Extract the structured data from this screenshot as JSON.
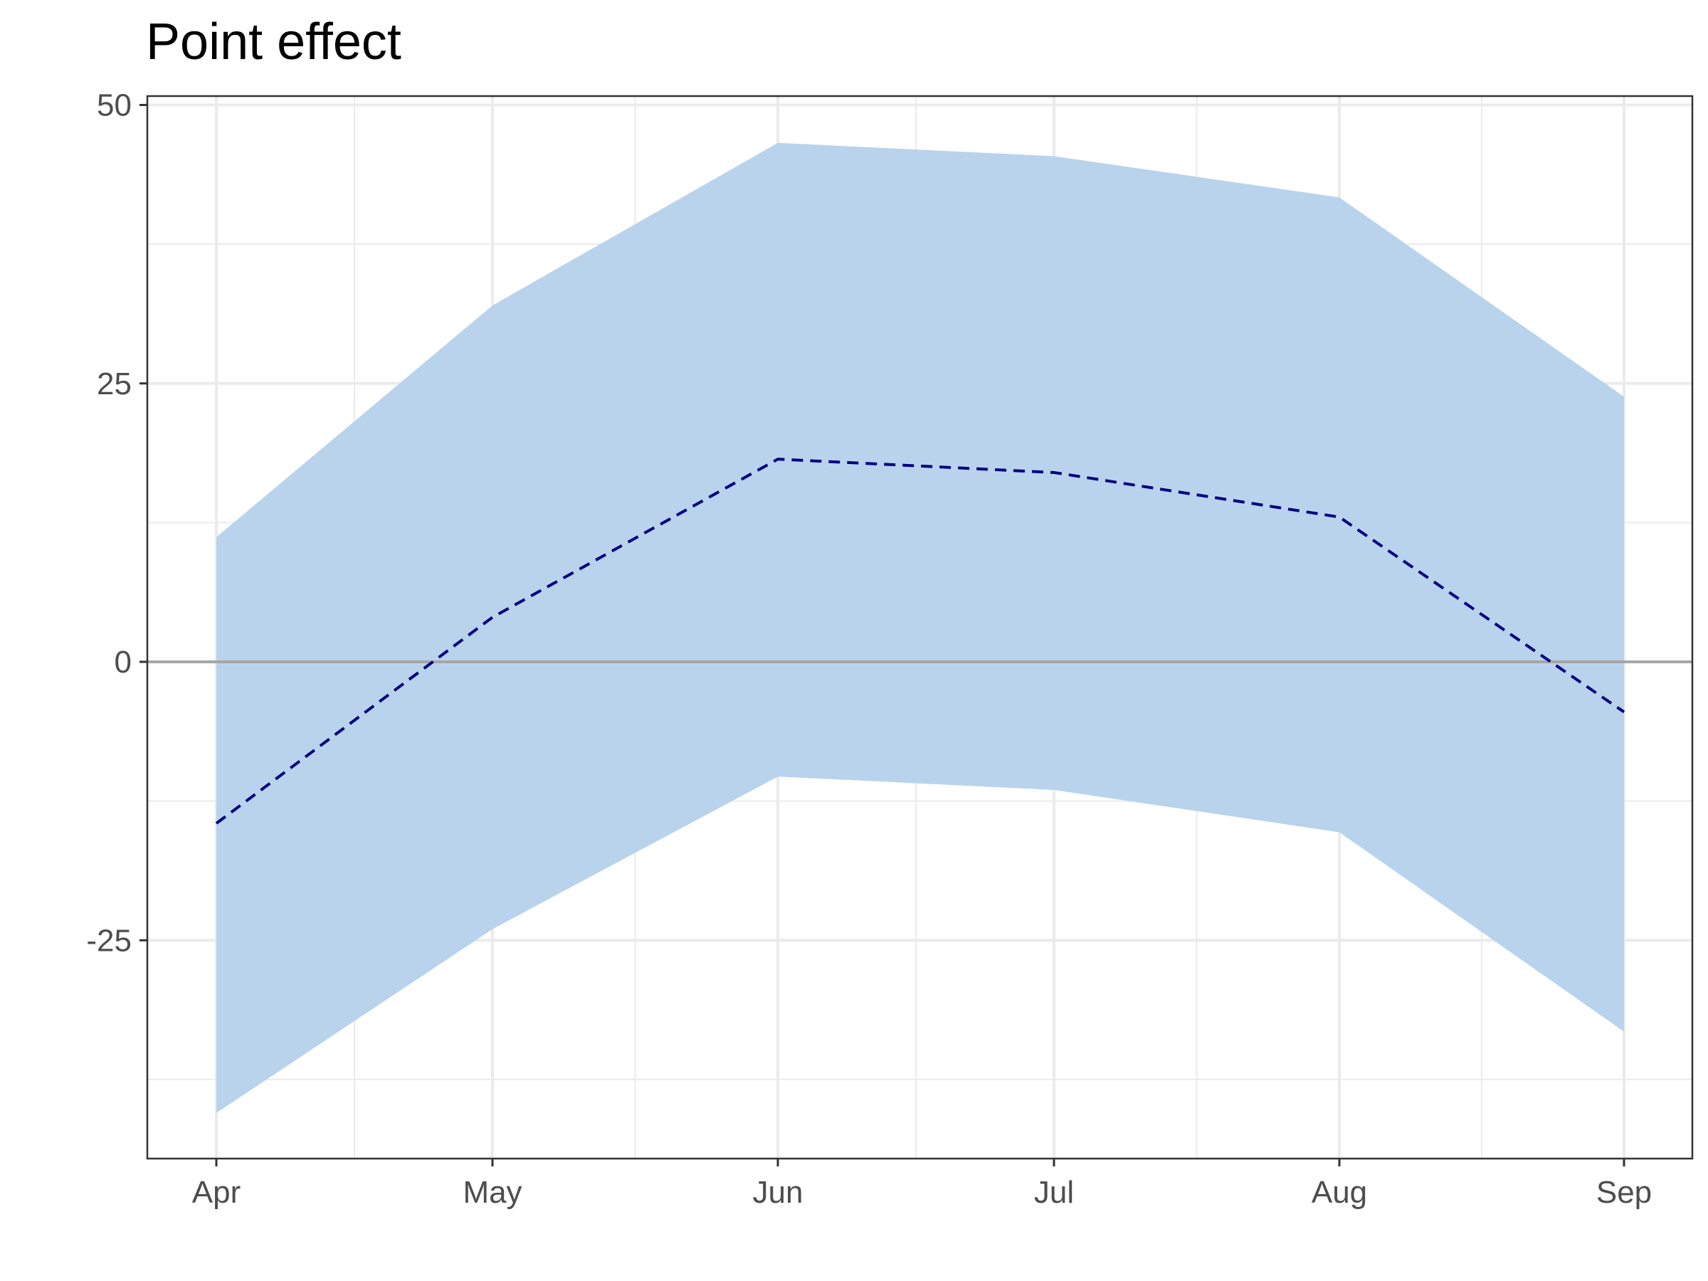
{
  "chart_data": {
    "type": "area",
    "title": "Point effect",
    "xlabel": "",
    "ylabel": "",
    "x": [
      "2000-04-01",
      "2000-05-01",
      "2000-06-01",
      "2000-07-01",
      "2000-08-01",
      "2000-09-01"
    ],
    "x_tick_labels": [
      "Apr",
      "May",
      "Jun",
      "Jul",
      "Aug",
      "Sep"
    ],
    "y_ticks": [
      -25,
      0,
      25,
      50
    ],
    "y_tick_labels": [
      "-25",
      "0",
      "25",
      "50"
    ],
    "ylim": [
      -44,
      51
    ],
    "grid": true,
    "reference_line": 0,
    "series": [
      {
        "kind": "line",
        "style": "dashed",
        "values": [
          -14.5,
          4,
          18.2,
          17,
          13,
          -4.5
        ]
      },
      {
        "kind": "band",
        "lower": [
          -40.5,
          -24,
          -10.3,
          -11.5,
          -15.3,
          -33.2
        ],
        "upper": [
          11.2,
          32,
          46.6,
          45.4,
          41.7,
          23.8
        ]
      }
    ],
    "colors": {
      "line": "#000080",
      "band": "#b9d3ed",
      "reference_line": "#a6a6a6",
      "grid": "#ebebeb",
      "axis": "#333333"
    }
  }
}
